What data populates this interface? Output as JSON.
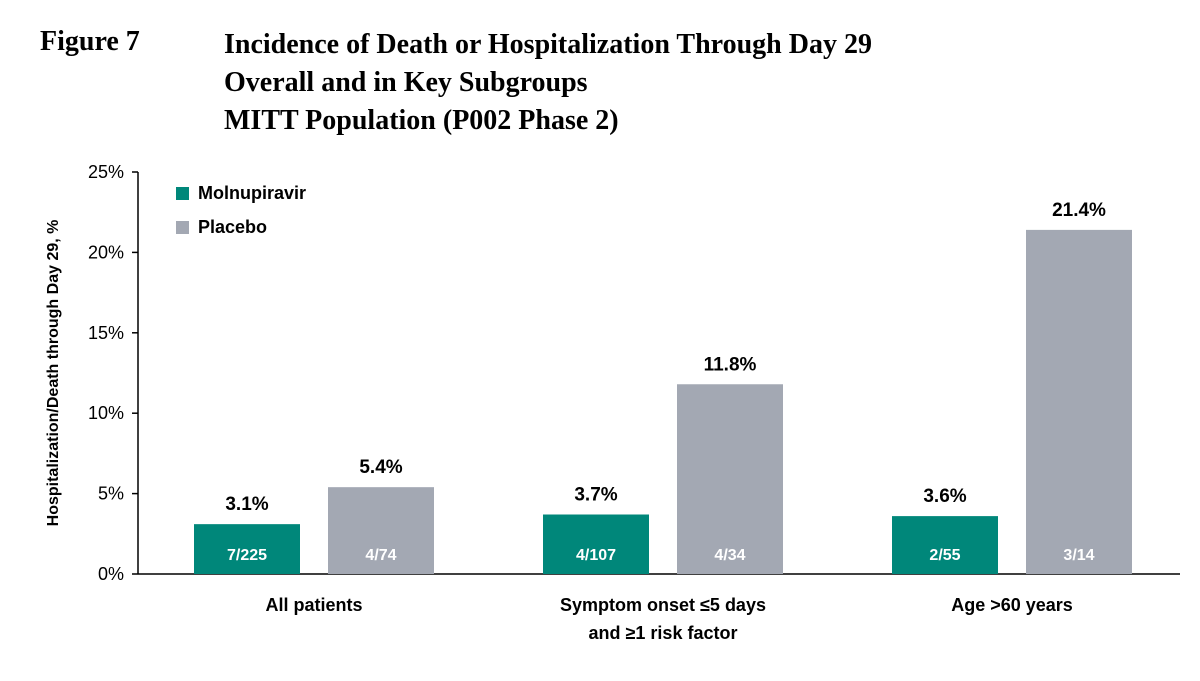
{
  "figure": {
    "label": "Figure 7",
    "title_lines": [
      "Incidence of Death or Hospitalization Through Day 29",
      "Overall and in Key Subgroups",
      "MITT Population (P002 Phase 2)"
    ]
  },
  "colors": {
    "molnupiravir": "#00877A",
    "placebo": "#A3A8B3",
    "axis": "#000000"
  },
  "chart_data": {
    "type": "bar",
    "ylabel": "Hospitalization/Death through Day 29, %",
    "ylim": [
      0,
      25
    ],
    "yticks": [
      0,
      5,
      10,
      15,
      20,
      25
    ],
    "ytick_labels": [
      "0%",
      "5%",
      "10%",
      "15%",
      "20%",
      "25%"
    ],
    "grid": false,
    "legend_position": "top-left",
    "categories": [
      [
        "All patients"
      ],
      [
        "Symptom onset ≤5 days",
        "and ≥1 risk factor"
      ],
      [
        "Age >60 years"
      ]
    ],
    "series": [
      {
        "name": "Molnupiravir",
        "values": [
          3.1,
          3.7,
          3.6
        ],
        "value_labels": [
          "3.1%",
          "3.7%",
          "3.6%"
        ],
        "count_labels": [
          "7/225",
          "4/107",
          "2/55"
        ]
      },
      {
        "name": "Placebo",
        "values": [
          5.4,
          11.8,
          21.4
        ],
        "value_labels": [
          "5.4%",
          "11.8%",
          "21.4%"
        ],
        "count_labels": [
          "4/74",
          "4/34",
          "3/14"
        ]
      }
    ]
  }
}
